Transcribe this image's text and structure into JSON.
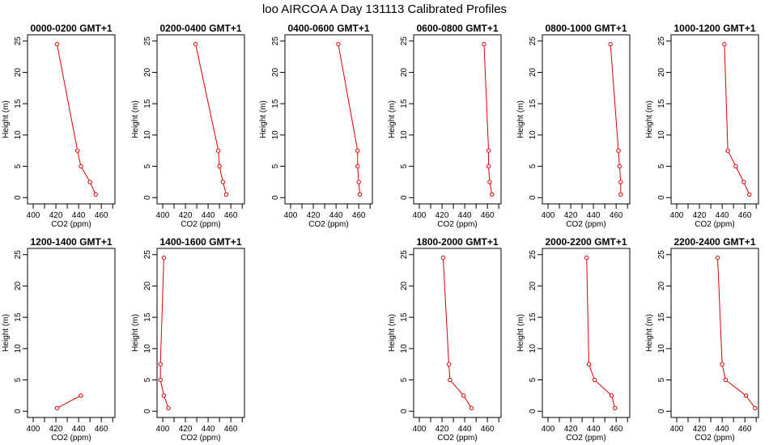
{
  "figure_title": "loo AIRCOA A  Day 131113  Calibrated Profiles",
  "colors": {
    "series": "#dd0000",
    "axis": "#000000"
  },
  "chart_data": [
    {
      "type": "line",
      "title": "0000-0200 GMT+1",
      "xlabel": "CO2 (ppm)",
      "ylabel": "Height (m)",
      "xlim": [
        395,
        472
      ],
      "ylim": [
        -1,
        26
      ],
      "xticks": [
        400,
        420,
        440,
        460
      ],
      "yticks": [
        0,
        5,
        10,
        15,
        20,
        25
      ],
      "points": [
        {
          "x": 455,
          "y": 0.5
        },
        {
          "x": 450,
          "y": 2.5
        },
        {
          "x": 442,
          "y": 5
        },
        {
          "x": 439,
          "y": 7.5
        },
        {
          "x": 421,
          "y": 24.5
        }
      ]
    },
    {
      "type": "line",
      "title": "0200-0400 GMT+1",
      "xlabel": "CO2 (ppm)",
      "ylabel": "Height (m)",
      "xlim": [
        395,
        472
      ],
      "ylim": [
        -1,
        26
      ],
      "xticks": [
        400,
        420,
        440,
        460
      ],
      "yticks": [
        0,
        5,
        10,
        15,
        20,
        25
      ],
      "points": [
        {
          "x": 456,
          "y": 0.5
        },
        {
          "x": 453,
          "y": 2.5
        },
        {
          "x": 450,
          "y": 5
        },
        {
          "x": 449,
          "y": 7.5
        },
        {
          "x": 429,
          "y": 24.5
        }
      ]
    },
    {
      "type": "line",
      "title": "0400-0600 GMT+1",
      "xlabel": "CO2 (ppm)",
      "ylabel": "Height (m)",
      "xlim": [
        395,
        472
      ],
      "ylim": [
        -1,
        26
      ],
      "xticks": [
        400,
        420,
        440,
        460
      ],
      "yticks": [
        0,
        5,
        10,
        15,
        20,
        25
      ],
      "points": [
        {
          "x": 461,
          "y": 0.5
        },
        {
          "x": 460,
          "y": 2.5
        },
        {
          "x": 459,
          "y": 5
        },
        {
          "x": 459,
          "y": 7.5
        },
        {
          "x": 442,
          "y": 24.5
        }
      ]
    },
    {
      "type": "line",
      "title": "0600-0800 GMT+1",
      "xlabel": "CO2 (ppm)",
      "ylabel": "Height (m)",
      "xlim": [
        395,
        472
      ],
      "ylim": [
        -1,
        26
      ],
      "xticks": [
        400,
        420,
        440,
        460
      ],
      "yticks": [
        0,
        5,
        10,
        15,
        20,
        25
      ],
      "points": [
        {
          "x": 464,
          "y": 0.5
        },
        {
          "x": 462,
          "y": 2.5
        },
        {
          "x": 461,
          "y": 5
        },
        {
          "x": 461,
          "y": 7.5
        },
        {
          "x": 457,
          "y": 24.5
        }
      ]
    },
    {
      "type": "line",
      "title": "0800-1000 GMT+1",
      "xlabel": "CO2 (ppm)",
      "ylabel": "Height (m)",
      "xlim": [
        395,
        472
      ],
      "ylim": [
        -1,
        26
      ],
      "xticks": [
        400,
        420,
        440,
        460
      ],
      "yticks": [
        0,
        5,
        10,
        15,
        20,
        25
      ],
      "points": [
        {
          "x": 464,
          "y": 0.5
        },
        {
          "x": 464,
          "y": 2.5
        },
        {
          "x": 463,
          "y": 5
        },
        {
          "x": 462,
          "y": 7.5
        },
        {
          "x": 455,
          "y": 24.5
        }
      ]
    },
    {
      "type": "line",
      "title": "1000-1200 GMT+1",
      "xlabel": "CO2 (ppm)",
      "ylabel": "Height (m)",
      "xlim": [
        395,
        472
      ],
      "ylim": [
        -1,
        26
      ],
      "xticks": [
        400,
        420,
        440,
        460
      ],
      "yticks": [
        0,
        5,
        10,
        15,
        20,
        25
      ],
      "points": [
        {
          "x": 464,
          "y": 0.5
        },
        {
          "x": 459,
          "y": 2.5
        },
        {
          "x": 452,
          "y": 5
        },
        {
          "x": 445,
          "y": 7.5
        },
        {
          "x": 442,
          "y": 24.5
        }
      ]
    },
    {
      "type": "line",
      "title": "1200-1400 GMT+1",
      "xlabel": "CO2 (ppm)",
      "ylabel": "Height (m)",
      "xlim": [
        395,
        472
      ],
      "ylim": [
        -1,
        26
      ],
      "xticks": [
        400,
        420,
        440,
        460
      ],
      "yticks": [
        0,
        5,
        10,
        15,
        20,
        25
      ],
      "points": [
        {
          "x": 421,
          "y": 0.5
        },
        {
          "x": 442,
          "y": 2.5
        }
      ]
    },
    {
      "type": "line",
      "title": "1400-1600 GMT+1",
      "xlabel": "CO2 (ppm)",
      "ylabel": "Height (m)",
      "xlim": [
        395,
        472
      ],
      "ylim": [
        -1,
        26
      ],
      "xticks": [
        400,
        420,
        440,
        460
      ],
      "yticks": [
        0,
        5,
        10,
        15,
        20,
        25
      ],
      "points": [
        {
          "x": 405,
          "y": 0.5
        },
        {
          "x": 401,
          "y": 2.5
        },
        {
          "x": 398,
          "y": 5
        },
        {
          "x": 398,
          "y": 7.5
        },
        {
          "x": 401,
          "y": 24.5
        }
      ]
    },
    null,
    {
      "type": "line",
      "title": "1800-2000 GMT+1",
      "xlabel": "CO2 (ppm)",
      "ylabel": "Height (m)",
      "xlim": [
        395,
        472
      ],
      "ylim": [
        -1,
        26
      ],
      "xticks": [
        400,
        420,
        440,
        460
      ],
      "yticks": [
        0,
        5,
        10,
        15,
        20,
        25
      ],
      "points": [
        {
          "x": 446,
          "y": 0.5
        },
        {
          "x": 439,
          "y": 2.5
        },
        {
          "x": 427,
          "y": 5
        },
        {
          "x": 426,
          "y": 7.5
        },
        {
          "x": 421,
          "y": 24.5
        }
      ]
    },
    {
      "type": "line",
      "title": "2000-2200 GMT+1",
      "xlabel": "CO2 (ppm)",
      "ylabel": "Height (m)",
      "xlim": [
        395,
        472
      ],
      "ylim": [
        -1,
        26
      ],
      "xticks": [
        400,
        420,
        440,
        460
      ],
      "yticks": [
        0,
        5,
        10,
        15,
        20,
        25
      ],
      "points": [
        {
          "x": 459,
          "y": 0.5
        },
        {
          "x": 456,
          "y": 2.5
        },
        {
          "x": 441,
          "y": 5
        },
        {
          "x": 436,
          "y": 7.5
        },
        {
          "x": 434,
          "y": 24.5
        }
      ]
    },
    {
      "type": "line",
      "title": "2200-2400 GMT+1",
      "xlabel": "CO2 (ppm)",
      "ylabel": "Height (m)",
      "xlim": [
        395,
        472
      ],
      "ylim": [
        -1,
        26
      ],
      "xticks": [
        400,
        420,
        440,
        460
      ],
      "yticks": [
        0,
        5,
        10,
        15,
        20,
        25
      ],
      "points": [
        {
          "x": 469,
          "y": 0.5
        },
        {
          "x": 461,
          "y": 2.5
        },
        {
          "x": 443,
          "y": 5
        },
        {
          "x": 440,
          "y": 7.5
        },
        {
          "x": 436,
          "y": 24.5
        }
      ]
    }
  ]
}
